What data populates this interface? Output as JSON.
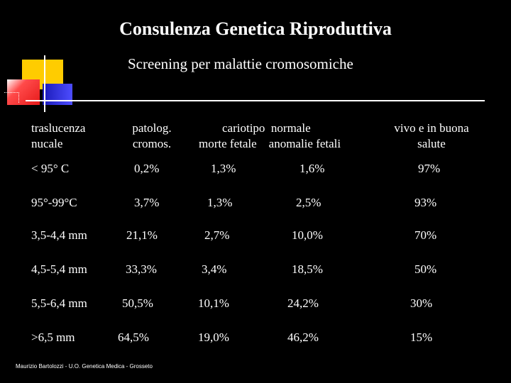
{
  "title": "Consulenza Genetica Riproduttiva",
  "subtitle": "Screening per malattie cromosomiche",
  "headers": {
    "col1_line1": "traslucenza",
    "col1_line2": "nucale",
    "col2_line1": "patolog.",
    "col2_line2": "cromos.",
    "col3_line1": "cariotipo  normale",
    "col3_line2": "morte fetale    anomalie fetali",
    "col4_line1": "vivo e in buona",
    "col4_line2": "salute"
  },
  "rows": [
    {
      "nt": "< 95° C",
      "patolog": "0,2%",
      "morte": "1,3%",
      "anomalie": "1,6%",
      "vivo": "97%"
    },
    {
      "nt": "95°-99°C",
      "patolog": "3,7%",
      "morte": "1,3%",
      "anomalie": "2,5%",
      "vivo": "93%"
    },
    {
      "nt": "3,5-4,4 mm",
      "patolog": "21,1%",
      "morte": "2,7%",
      "anomalie": "10,0%",
      "vivo": "70%"
    },
    {
      "nt": "4,5-5,4 mm",
      "patolog": "33,3%",
      "morte": "3,4%",
      "anomalie": "18,5%",
      "vivo": "50%"
    },
    {
      "nt": "5,5-6,4 mm",
      "patolog": "50,5%",
      "morte": "10,1%",
      "anomalie": "24,2%",
      "vivo": "30%"
    },
    {
      "nt": ">6,5 mm",
      "patolog": "64,5%",
      "morte": "19,0%",
      "anomalie": "46,2%",
      "vivo": "15%"
    }
  ],
  "footer": "Maurizio Bartolozzi - U.O. Genetica Medica - Grosseto",
  "colors": {
    "background": "#000000",
    "text": "#ffffff",
    "deco_yellow": "#ffcc00",
    "deco_blue": "#2a2ad6",
    "deco_red": "#ff2a2a",
    "rule": "#ffffff"
  }
}
